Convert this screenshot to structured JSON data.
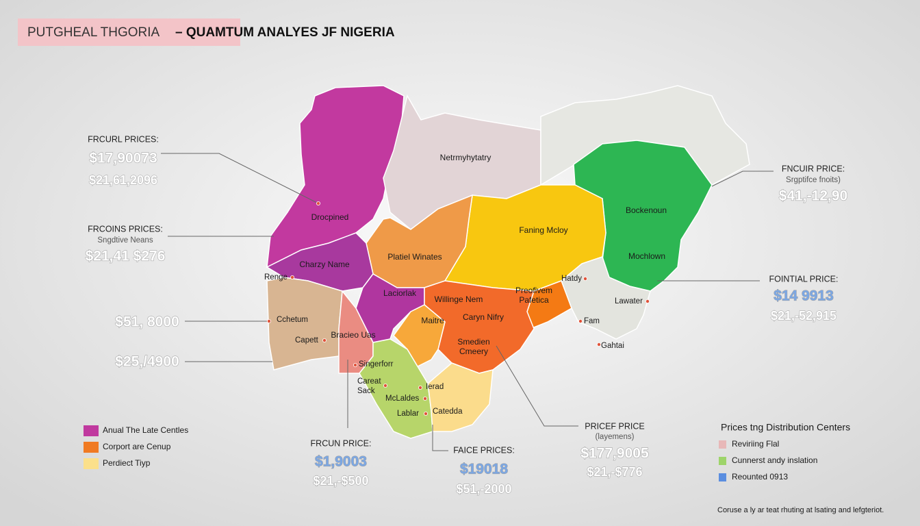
{
  "title": {
    "highlight": "PUTGHEAL THGORIA",
    "rest": "– QUAMTUM ANALYES JF NIGERIA"
  },
  "regions": [
    {
      "lines": [
        "Drocpined"
      ]
    },
    {
      "lines": [
        "Netrmyhytatry"
      ]
    },
    {
      "lines": [
        "Faning Mcloy"
      ]
    },
    {
      "lines": [
        "Bockenoun"
      ]
    },
    {
      "lines": [
        "Mochlown"
      ]
    },
    {
      "lines": [
        "Platiel Winates"
      ]
    },
    {
      "lines": [
        "Charzy Name"
      ]
    },
    {
      "lines": [
        "Laciorlak"
      ]
    },
    {
      "lines": [
        "Willinge Nem"
      ]
    },
    {
      "lines": [
        "Preofivem",
        "Pafetica"
      ]
    },
    {
      "lines": [
        "Caryn Nifry"
      ]
    },
    {
      "lines": [
        "Maitre"
      ]
    },
    {
      "lines": [
        "Smedien",
        "Cmeery"
      ]
    },
    {
      "lines": [
        "Bracieo Uas"
      ]
    }
  ],
  "places": [
    {
      "lines": [
        "Renge"
      ]
    },
    {
      "lines": [
        "Cchetum"
      ]
    },
    {
      "lines": [
        "Capett"
      ]
    },
    {
      "lines": [
        "Singerforr"
      ]
    },
    {
      "lines": [
        "Careat",
        "Sack"
      ]
    },
    {
      "lines": [
        "McLaldes"
      ]
    },
    {
      "lines": [
        "Lablar"
      ]
    },
    {
      "lines": [
        "Ierad"
      ]
    },
    {
      "lines": [
        "Catedda"
      ]
    },
    {
      "lines": [
        "Hatdy"
      ]
    },
    {
      "lines": [
        "Lawater"
      ]
    },
    {
      "lines": [
        "Fam"
      ]
    },
    {
      "lines": [
        "Gahtai"
      ]
    }
  ],
  "callouts": [
    {
      "heading": "FRCURL PRICES:",
      "price": "$17,90073",
      "range": "$21,61,2096",
      "price_color": "#ffffff"
    },
    {
      "heading": "FRCOINS PRICES:",
      "sub": "Sngdtive Neans",
      "price": "$21,41 $276",
      "price_color": "#ffffff"
    },
    {
      "price": "$51, 8000",
      "price_color": "#ffffff"
    },
    {
      "price": "$25,/4900",
      "price_color": "#ffffff"
    },
    {
      "heading": "FNCUIR PRICE:",
      "sub": "Srgptifce fnoits)",
      "price": "$41,-12,90",
      "price_color": "#ffffff"
    },
    {
      "heading": "FOINTIAL PRICE:",
      "price": "$14 9913",
      "range": "$21,-52,915",
      "price_color": "#7ba7e4"
    },
    {
      "heading": "FRCUN PRICE:",
      "price": "$1,9003",
      "range": "$21,-$500",
      "price_color": "#7ba7e4"
    },
    {
      "heading": "FAICE PRICES:",
      "price": "$19018",
      "range": "$51,-2000",
      "price_color": "#7ba7e4"
    },
    {
      "heading": "PRICEF PRICE",
      "sub": "(layemens)",
      "price": "$177,9005",
      "range": "$21,-$776",
      "price_color": "#ffffff"
    }
  ],
  "legend": {
    "items": [
      {
        "label": "Anual The Late Centles",
        "color": "#c0399f"
      },
      {
        "label": "Corport are Cenup",
        "color": "#f07a22"
      },
      {
        "label": "Perdiect Tiyp",
        "color": "#fbe08b"
      }
    ]
  },
  "distribution_legend": {
    "title": "Prices tng Distribution Centers",
    "items": [
      {
        "label": "Reviriing Flal",
        "color": "#e8b8b8"
      },
      {
        "label": "Cunnerst andy inslation",
        "color": "#9ed46a"
      },
      {
        "label": "Reounted 0913",
        "color": "#5b8ee0"
      }
    ]
  },
  "footnote": "Coruse a ly ar teat rhuting at lsating and lefgteriot."
}
